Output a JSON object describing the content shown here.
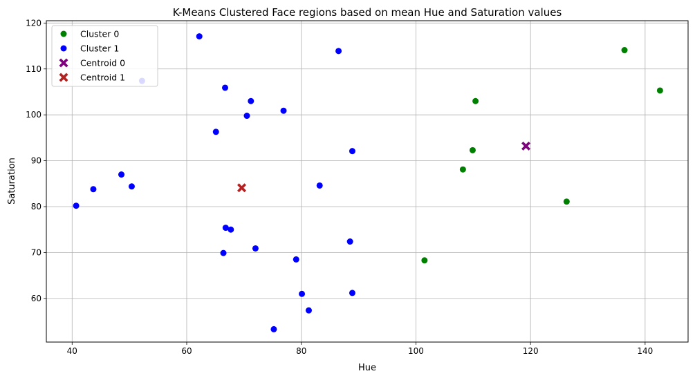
{
  "chart_data": {
    "type": "scatter",
    "title": "K-Means Clustered Face regions based on mean Hue and Saturation values",
    "xlabel": "Hue",
    "ylabel": "Saturation",
    "xlim": [
      35.5,
      147.5
    ],
    "ylim": [
      50.5,
      120.5
    ],
    "xticks": [
      40,
      60,
      80,
      100,
      120,
      140
    ],
    "yticks": [
      60,
      70,
      80,
      90,
      100,
      110,
      120
    ],
    "grid": true,
    "legend_position": "upper-left",
    "series": [
      {
        "name": "Cluster 0",
        "marker": "circle",
        "color": "#008000",
        "points": [
          {
            "x": 101.5,
            "y": 68.3
          },
          {
            "x": 108.2,
            "y": 88.1
          },
          {
            "x": 109.9,
            "y": 92.3
          },
          {
            "x": 110.4,
            "y": 103.0
          },
          {
            "x": 126.3,
            "y": 81.1
          },
          {
            "x": 136.4,
            "y": 114.1
          },
          {
            "x": 142.6,
            "y": 105.3
          }
        ]
      },
      {
        "name": "Cluster 1",
        "marker": "circle",
        "color": "#0000ff",
        "points": [
          {
            "x": 40.7,
            "y": 80.2
          },
          {
            "x": 43.7,
            "y": 83.8
          },
          {
            "x": 48.6,
            "y": 87.0
          },
          {
            "x": 50.4,
            "y": 84.4
          },
          {
            "x": 52.2,
            "y": 107.4
          },
          {
            "x": 62.2,
            "y": 117.1
          },
          {
            "x": 65.1,
            "y": 96.3
          },
          {
            "x": 66.4,
            "y": 69.9
          },
          {
            "x": 66.7,
            "y": 105.9
          },
          {
            "x": 66.8,
            "y": 75.4
          },
          {
            "x": 67.7,
            "y": 75.0
          },
          {
            "x": 70.5,
            "y": 99.8
          },
          {
            "x": 71.2,
            "y": 103.0
          },
          {
            "x": 72.0,
            "y": 70.9
          },
          {
            "x": 75.2,
            "y": 53.3
          },
          {
            "x": 76.9,
            "y": 100.9
          },
          {
            "x": 79.1,
            "y": 68.5
          },
          {
            "x": 80.1,
            "y": 61.0
          },
          {
            "x": 81.3,
            "y": 57.4
          },
          {
            "x": 83.2,
            "y": 84.6
          },
          {
            "x": 86.5,
            "y": 113.9
          },
          {
            "x": 88.5,
            "y": 72.4
          },
          {
            "x": 88.9,
            "y": 92.1
          },
          {
            "x": 88.9,
            "y": 61.2
          }
        ]
      },
      {
        "name": "Centroid 0",
        "marker": "X",
        "color": "#800080",
        "points": [
          {
            "x": 119.2,
            "y": 93.2
          }
        ]
      },
      {
        "name": "Centroid 1",
        "marker": "X",
        "color": "#b22222",
        "points": [
          {
            "x": 69.6,
            "y": 84.1
          }
        ]
      }
    ]
  }
}
